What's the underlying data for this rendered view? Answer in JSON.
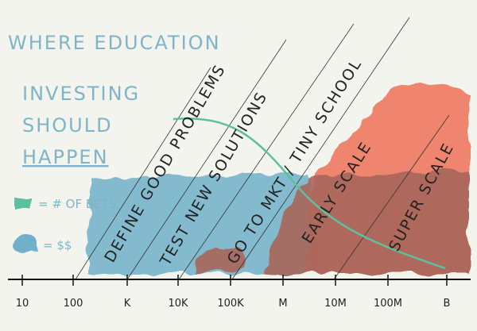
{
  "title": {
    "lines": [
      "WHERE EDUCATION",
      "INVESTING",
      "SHOULD",
      "HAPPEN"
    ]
  },
  "legend": {
    "bets": "= # OF BETS",
    "dollars": "= $$"
  },
  "axis": {
    "labels": [
      "10",
      "100",
      "K",
      "10K",
      "100K",
      "M",
      "10M",
      "100M",
      "B"
    ]
  },
  "stages": [
    "DEFINE GOOD PROBLEMS",
    "TEST NEW SOLUTIONS",
    "GO TO MKT / TINY SCHOOL",
    "EARLY SCALE",
    "SUPER SCALE"
  ]
}
